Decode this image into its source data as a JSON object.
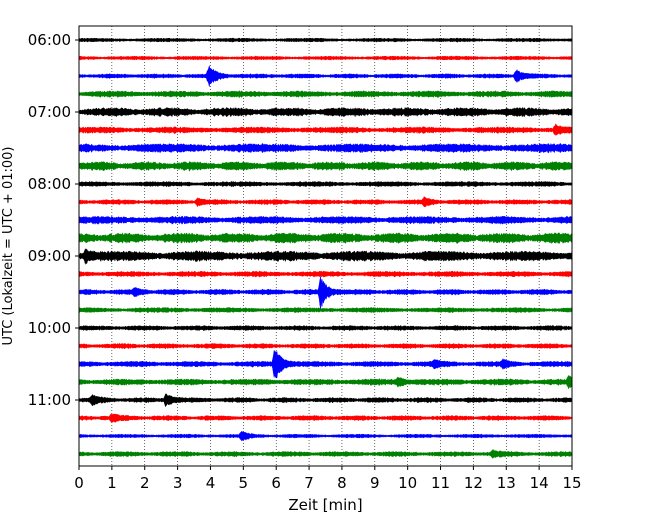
{
  "chart_data": {
    "type": "line",
    "subtype": "helicorder",
    "xlabel": "Zeit  [min]",
    "ylabel": "UTC (Lokalzeit = UTC + 01:00)",
    "xlim": [
      0,
      15
    ],
    "x_ticks": [
      0,
      1,
      2,
      3,
      4,
      5,
      6,
      7,
      8,
      9,
      10,
      11,
      12,
      13,
      14,
      15
    ],
    "y_tick_labels": [
      "06:00",
      "07:00",
      "08:00",
      "09:00",
      "10:00",
      "11:00"
    ],
    "grid": "vertical dotted lines at each minute",
    "trace_interval_min": 15,
    "trace_colors": [
      "#000000",
      "#ff0000",
      "#0000ff",
      "#008000"
    ],
    "traces": [
      {
        "start": "06:00",
        "color": "#000000",
        "amp": 1.5,
        "events": []
      },
      {
        "start": "06:15",
        "color": "#ff0000",
        "amp": 1.5,
        "events": []
      },
      {
        "start": "06:30",
        "color": "#0000ff",
        "amp": 1.8,
        "events": [
          {
            "min": 3.95,
            "amp": 10
          },
          {
            "min": 13.3,
            "amp": 6
          }
        ]
      },
      {
        "start": "06:45",
        "color": "#008000",
        "amp": 2.5,
        "events": []
      },
      {
        "start": "07:00",
        "color": "#000000",
        "amp": 3.5,
        "events": []
      },
      {
        "start": "07:15",
        "color": "#ff0000",
        "amp": 2.5,
        "events": [
          {
            "min": 14.5,
            "amp": 4
          }
        ]
      },
      {
        "start": "07:30",
        "color": "#0000ff",
        "amp": 3.5,
        "events": []
      },
      {
        "start": "07:45",
        "color": "#008000",
        "amp": 3.5,
        "events": []
      },
      {
        "start": "08:00",
        "color": "#000000",
        "amp": 2,
        "events": []
      },
      {
        "start": "08:15",
        "color": "#ff0000",
        "amp": 2,
        "events": [
          {
            "min": 3.6,
            "amp": 3
          },
          {
            "min": 10.5,
            "amp": 3.5
          }
        ]
      },
      {
        "start": "08:30",
        "color": "#0000ff",
        "amp": 3,
        "events": []
      },
      {
        "start": "08:45",
        "color": "#008000",
        "amp": 4,
        "events": []
      },
      {
        "start": "09:00",
        "color": "#000000",
        "amp": 4,
        "events": [
          {
            "min": 0.2,
            "amp": 5
          }
        ]
      },
      {
        "start": "09:15",
        "color": "#ff0000",
        "amp": 2.2,
        "events": []
      },
      {
        "start": "09:30",
        "color": "#0000ff",
        "amp": 2.2,
        "events": [
          {
            "min": 7.35,
            "amp": 14
          },
          {
            "min": 1.7,
            "amp": 3
          }
        ]
      },
      {
        "start": "09:45",
        "color": "#008000",
        "amp": 2,
        "events": []
      },
      {
        "start": "10:00",
        "color": "#000000",
        "amp": 2,
        "events": []
      },
      {
        "start": "10:15",
        "color": "#ff0000",
        "amp": 2,
        "events": []
      },
      {
        "start": "10:30",
        "color": "#0000ff",
        "amp": 2.2,
        "events": [
          {
            "min": 5.95,
            "amp": 17
          },
          {
            "min": 10.8,
            "amp": 3
          },
          {
            "min": 12.9,
            "amp": 3
          }
        ]
      },
      {
        "start": "10:45",
        "color": "#008000",
        "amp": 2.5,
        "events": [
          {
            "min": 9.7,
            "amp": 4
          },
          {
            "min": 14.9,
            "amp": 5
          }
        ]
      },
      {
        "start": "11:00",
        "color": "#000000",
        "amp": 2,
        "events": [
          {
            "min": 0.4,
            "amp": 4
          },
          {
            "min": 2.65,
            "amp": 6
          }
        ]
      },
      {
        "start": "11:15",
        "color": "#ff0000",
        "amp": 2,
        "events": [
          {
            "min": 1.0,
            "amp": 3
          }
        ]
      },
      {
        "start": "11:30",
        "color": "#0000ff",
        "amp": 1.5,
        "events": [
          {
            "min": 4.95,
            "amp": 4
          }
        ]
      },
      {
        "start": "11:45",
        "color": "#008000",
        "amp": 2,
        "events": [
          {
            "min": 12.6,
            "amp": 3
          }
        ]
      }
    ]
  }
}
